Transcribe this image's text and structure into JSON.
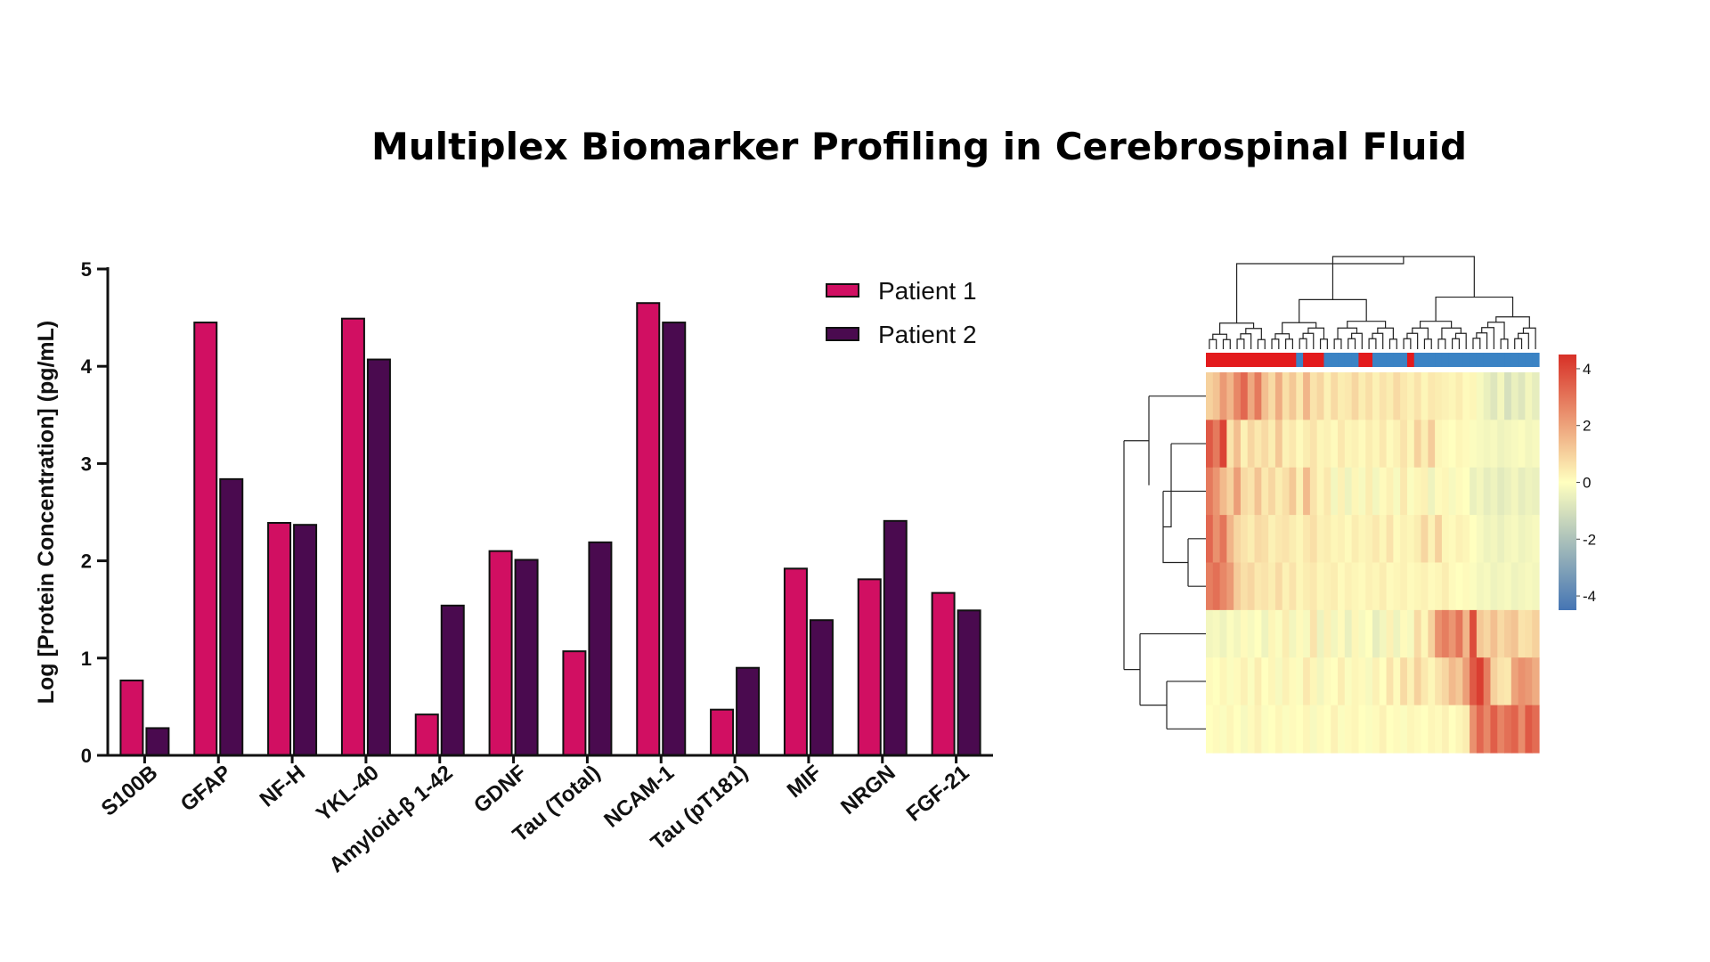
{
  "title": "Multiplex Biomarker Profiling in Cerebrospinal Fluid",
  "colors": {
    "patient1": "#d10f62",
    "patient2": "#4a0a4f",
    "axis": "#111111",
    "heat_high": "#d73027",
    "heat_mid": "#ffffbf",
    "heat_low": "#4575b4",
    "group_a": "#e31a1c",
    "group_b": "#3b83c4"
  },
  "chart_data": [
    {
      "type": "bar",
      "title": "",
      "xlabel": "",
      "ylabel": "Log [Protein Concentration] (pg/mL)",
      "ylim": [
        0,
        5
      ],
      "yticks": [
        "0",
        "1",
        "2",
        "3",
        "4",
        "5"
      ],
      "categories": [
        "S100B",
        "GFAP",
        "NF-H",
        "YKL-40",
        "Amyloid-β 1-42",
        "GDNF",
        "Tau (Total)",
        "NCAM-1",
        "Tau (pT181)",
        "MIF",
        "NRGN",
        "FGF-21"
      ],
      "series": [
        {
          "name": "Patient 1",
          "values": [
            0.77,
            4.45,
            2.39,
            4.49,
            0.42,
            2.1,
            1.07,
            4.65,
            0.47,
            1.92,
            1.81,
            1.67
          ]
        },
        {
          "name": "Patient 2",
          "values": [
            0.28,
            2.84,
            2.37,
            4.07,
            1.54,
            2.01,
            2.19,
            4.45,
            0.9,
            1.39,
            2.41,
            1.49
          ]
        }
      ],
      "grid": false,
      "legend_position": "top-right"
    },
    {
      "type": "heatmap",
      "colorbar_ticks": [
        "4",
        "2",
        "0",
        "-2",
        "-4"
      ],
      "colorbar_range": [
        -4.5,
        4.5
      ],
      "rows": 8,
      "columns": 48,
      "column_dendrogram": true,
      "row_dendrogram": true,
      "column_groups": [
        "A",
        "A",
        "A",
        "A",
        "A",
        "A",
        "A",
        "A",
        "A",
        "A",
        "A",
        "A",
        "A",
        "B",
        "A",
        "A",
        "A",
        "B",
        "B",
        "B",
        "B",
        "B",
        "A",
        "A",
        "B",
        "B",
        "B",
        "B",
        "B",
        "A",
        "B",
        "B",
        "B",
        "B",
        "B",
        "B",
        "B",
        "B",
        "B",
        "B",
        "B",
        "B",
        "B",
        "B",
        "B",
        "B",
        "B",
        "B"
      ],
      "values": [
        [
          1.0,
          1.3,
          2.2,
          1.6,
          2.6,
          3.3,
          1.9,
          2.9,
          1.4,
          0.8,
          1.8,
          0.7,
          1.2,
          0.5,
          1.6,
          0.6,
          0.9,
          0.3,
          0.8,
          0.4,
          0.5,
          0.9,
          0.4,
          0.7,
          0.3,
          0.6,
          0.4,
          0.8,
          0.5,
          0.3,
          0.6,
          0.2,
          0.5,
          0.4,
          0.3,
          0.2,
          0.4,
          0.1,
          0.2,
          -0.2,
          -0.5,
          -0.8,
          -0.3,
          -1.0,
          -0.5,
          -0.8,
          -0.3,
          -0.6
        ],
        [
          3.6,
          2.9,
          4.1,
          0.6,
          1.4,
          0.3,
          0.9,
          0.5,
          0.8,
          0.4,
          1.2,
          0.3,
          0.5,
          0.1,
          0.4,
          0.6,
          0.2,
          0.3,
          0.1,
          0.5,
          0.2,
          0.3,
          0.1,
          0.4,
          0.2,
          0.5,
          0.1,
          0.3,
          0.6,
          0.2,
          1.0,
          0.4,
          1.1,
          0.2,
          0.1,
          0.0,
          0.2,
          0.1,
          -0.1,
          -0.2,
          -0.3,
          -0.2,
          -0.4,
          -0.3,
          -0.2,
          -0.1,
          -0.3,
          -0.2
        ],
        [
          2.9,
          2.3,
          1.5,
          1.0,
          2.1,
          0.8,
          0.6,
          1.3,
          0.5,
          0.9,
          0.4,
          0.7,
          1.2,
          0.3,
          1.5,
          0.6,
          0.2,
          0.5,
          -0.3,
          0.3,
          -0.4,
          0.2,
          -0.2,
          0.4,
          -0.3,
          0.1,
          0.3,
          -0.2,
          0.5,
          -0.1,
          0.2,
          0.3,
          -0.4,
          0.1,
          0.2,
          -0.2,
          0.1,
          0.0,
          -0.5,
          -0.3,
          -0.6,
          -0.4,
          -0.7,
          -0.5,
          -0.3,
          -0.6,
          -0.4,
          -0.5
        ],
        [
          3.3,
          2.4,
          3.0,
          1.6,
          0.9,
          0.6,
          0.4,
          0.8,
          0.7,
          0.3,
          0.5,
          0.6,
          0.4,
          0.2,
          0.5,
          0.7,
          0.3,
          0.4,
          0.2,
          0.3,
          0.1,
          0.4,
          0.2,
          0.3,
          0.5,
          0.2,
          0.6,
          0.1,
          0.3,
          0.2,
          0.4,
          0.9,
          0.3,
          1.0,
          0.2,
          0.1,
          0.3,
          0.2,
          0.0,
          -0.2,
          -0.4,
          -0.3,
          -0.5,
          -0.3,
          -0.2,
          -0.4,
          -0.3,
          -0.2
        ],
        [
          2.8,
          3.1,
          2.6,
          2.2,
          1.1,
          0.7,
          0.9,
          0.5,
          0.6,
          0.4,
          0.8,
          0.3,
          0.6,
          0.2,
          0.4,
          0.5,
          0.2,
          0.3,
          0.4,
          0.1,
          0.3,
          0.2,
          0.1,
          0.3,
          0.2,
          0.4,
          0.1,
          0.2,
          0.3,
          0.1,
          0.2,
          0.3,
          0.1,
          0.2,
          0.4,
          0.1,
          0.0,
          0.1,
          -0.1,
          -0.3,
          -0.2,
          -0.4,
          -0.3,
          -0.2,
          -0.4,
          -0.3,
          -0.2,
          -0.3
        ],
        [
          -0.3,
          -0.2,
          -0.4,
          -0.1,
          -0.3,
          0.1,
          -0.2,
          0.0,
          -0.4,
          0.2,
          -0.1,
          0.4,
          -0.3,
          0.1,
          -0.2,
          0.6,
          -0.4,
          0.3,
          -0.3,
          0.1,
          -0.5,
          0.2,
          -0.2,
          0.0,
          -0.6,
          -0.3,
          0.3,
          -0.4,
          0.1,
          -0.2,
          0.8,
          0.2,
          1.0,
          2.4,
          2.8,
          2.3,
          3.0,
          1.6,
          3.9,
          1.2,
          0.9,
          1.4,
          0.8,
          1.1,
          1.3,
          0.6,
          0.7,
          1.0
        ],
        [
          0.1,
          0.0,
          0.2,
          -0.1,
          0.1,
          0.3,
          -0.1,
          0.4,
          0.0,
          0.2,
          -0.2,
          0.3,
          0.1,
          -0.1,
          0.5,
          0.2,
          -0.3,
          0.1,
          0.0,
          0.4,
          -0.1,
          0.2,
          0.1,
          -0.2,
          0.3,
          0.0,
          0.6,
          0.1,
          0.8,
          0.3,
          1.0,
          0.5,
          0.2,
          0.6,
          0.9,
          1.5,
          1.2,
          2.1,
          3.6,
          4.2,
          2.8,
          1.0,
          0.6,
          0.5,
          2.0,
          2.4,
          2.2,
          1.8
        ],
        [
          0.0,
          0.1,
          -0.1,
          0.2,
          0.0,
          -0.2,
          0.1,
          0.3,
          -0.1,
          0.0,
          0.2,
          -0.1,
          0.1,
          0.0,
          0.2,
          -0.2,
          0.1,
          0.0,
          0.3,
          -0.1,
          0.1,
          0.2,
          0.0,
          -0.1,
          0.1,
          0.3,
          0.0,
          0.1,
          -0.1,
          0.2,
          0.1,
          0.0,
          0.2,
          0.1,
          0.3,
          0.0,
          0.2,
          0.4,
          2.4,
          3.3,
          2.6,
          3.5,
          2.7,
          3.1,
          3.4,
          2.5,
          3.6,
          3.2
        ]
      ]
    }
  ]
}
